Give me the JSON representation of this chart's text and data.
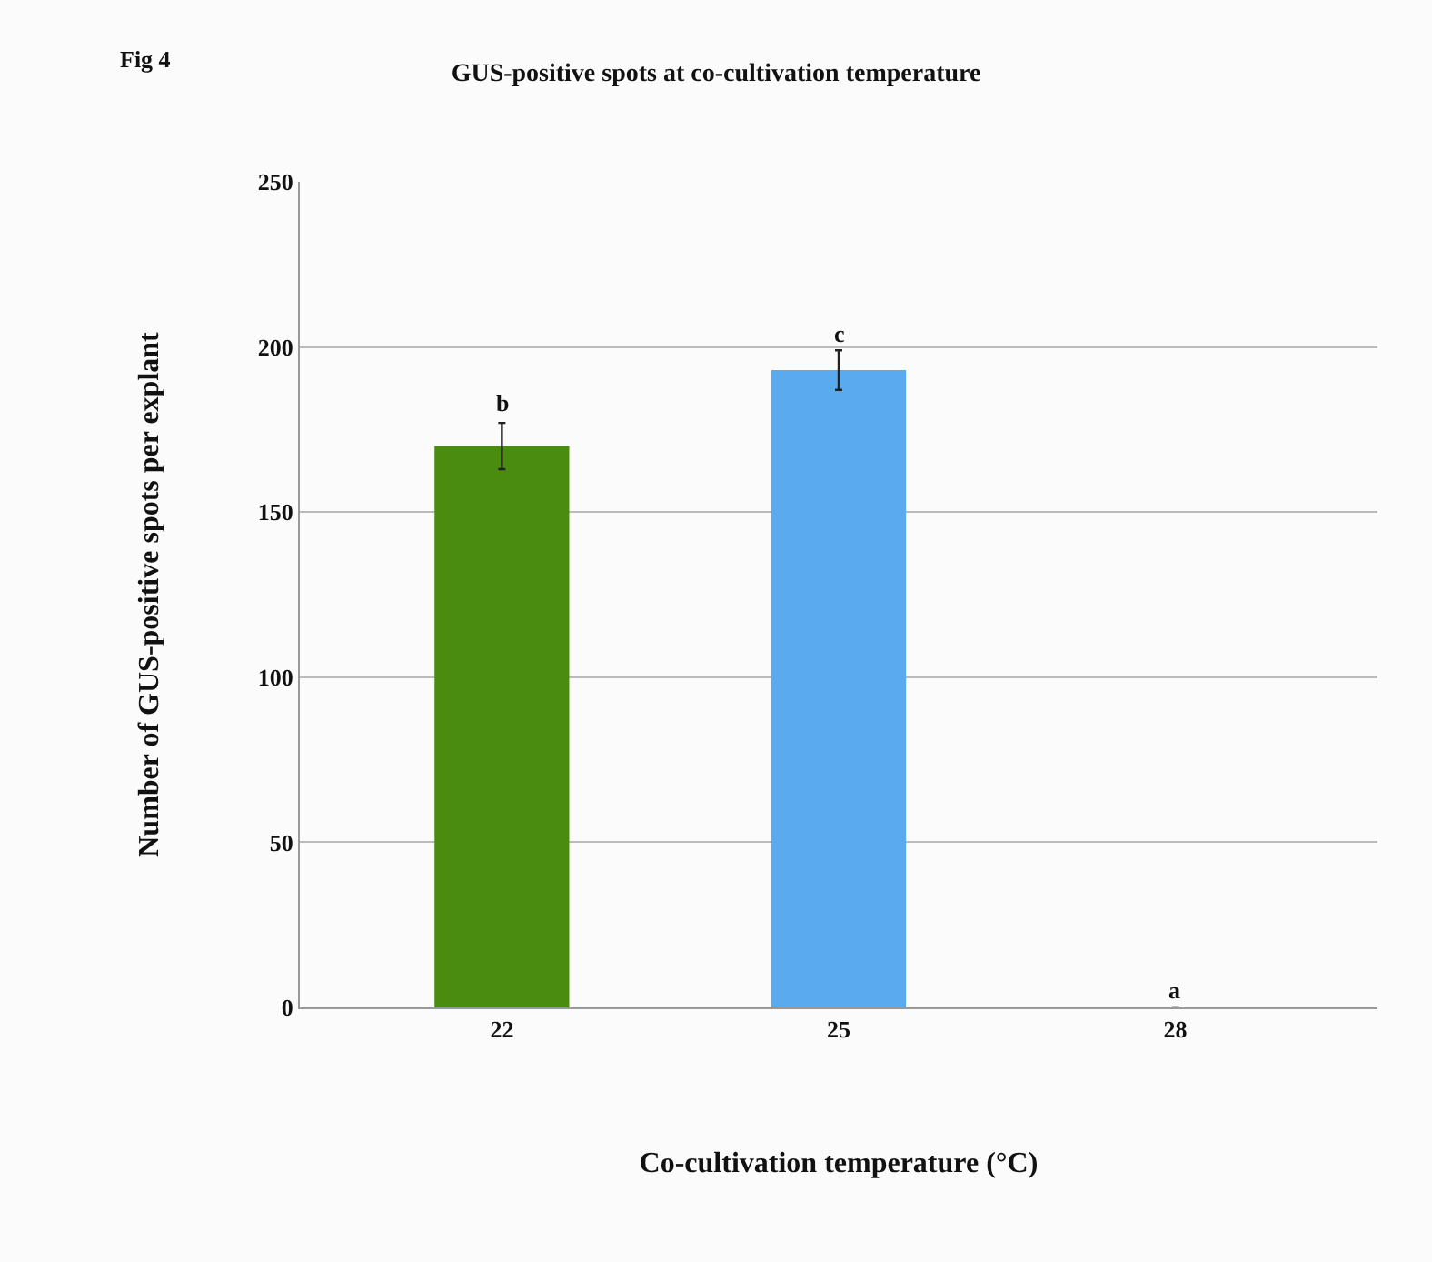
{
  "chart_data": {
    "type": "bar",
    "title": "GUS-positive spots at co-cultivation temperature",
    "xlabel": "Co-cultivation temperature (°C)",
    "ylabel": "Number of GUS-positive spots per explant",
    "categories": [
      "22",
      "25",
      "28"
    ],
    "values": [
      170,
      193,
      0
    ],
    "colors": [
      "#4a8c0f",
      "#5aaaf0",
      "#5aaaf0"
    ],
    "errors": [
      7,
      6,
      null
    ],
    "ylim": [
      0,
      250
    ],
    "yticks": [
      0,
      50,
      100,
      150,
      200,
      250
    ],
    "grid": "y",
    "annotations": [
      "Fig 4",
      {
        "text": "b",
        "x": "22",
        "y": 178
      },
      {
        "text": "c",
        "x": "25",
        "y": 199
      },
      {
        "text": "a",
        "x": "28",
        "y": 0
      }
    ]
  }
}
